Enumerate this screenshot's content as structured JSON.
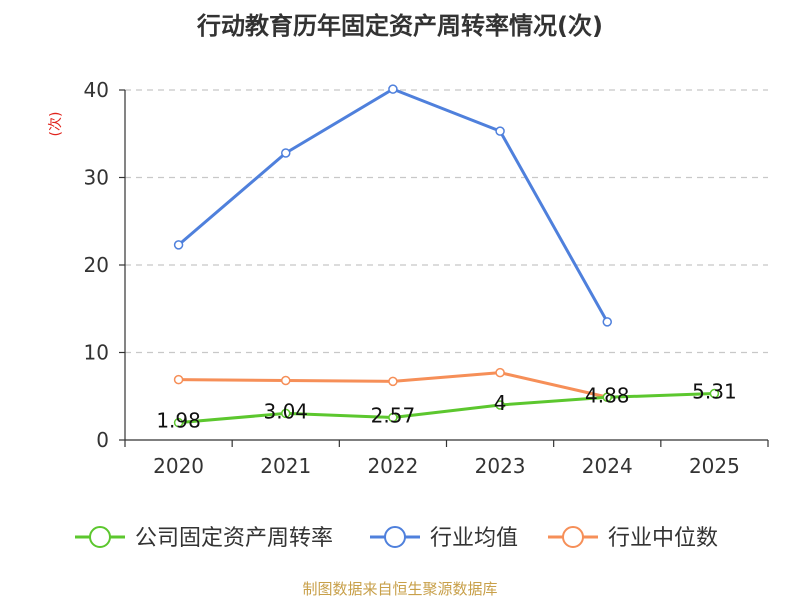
{
  "chart_data": {
    "type": "line",
    "title": "行动教育历年固定资产周转率情况(次)",
    "ylabel": "(次)",
    "ylim": [
      0,
      40
    ],
    "yticks": [
      0,
      10,
      20,
      30,
      40
    ],
    "grid": true,
    "legend_position": "bottom",
    "categories": [
      "2020",
      "2021",
      "2022",
      "2023",
      "2024",
      "2025"
    ],
    "series": [
      {
        "name": "公司固定资产周转率",
        "color": "#5cc72e",
        "values": [
          1.98,
          3.04,
          2.57,
          4,
          4.88,
          5.31
        ],
        "labels": [
          "1.98",
          "3.04",
          "2.57",
          "4",
          "4.88",
          "5.31"
        ]
      },
      {
        "name": "行业均值",
        "color": "#4f80dc",
        "values": [
          22.3,
          32.8,
          40.1,
          35.3,
          13.5,
          null
        ]
      },
      {
        "name": "行业中位数",
        "color": "#f68f58",
        "values": [
          6.9,
          6.8,
          6.7,
          7.7,
          4.9,
          null
        ]
      }
    ],
    "source": "制图数据来自恒生聚源数据库"
  }
}
